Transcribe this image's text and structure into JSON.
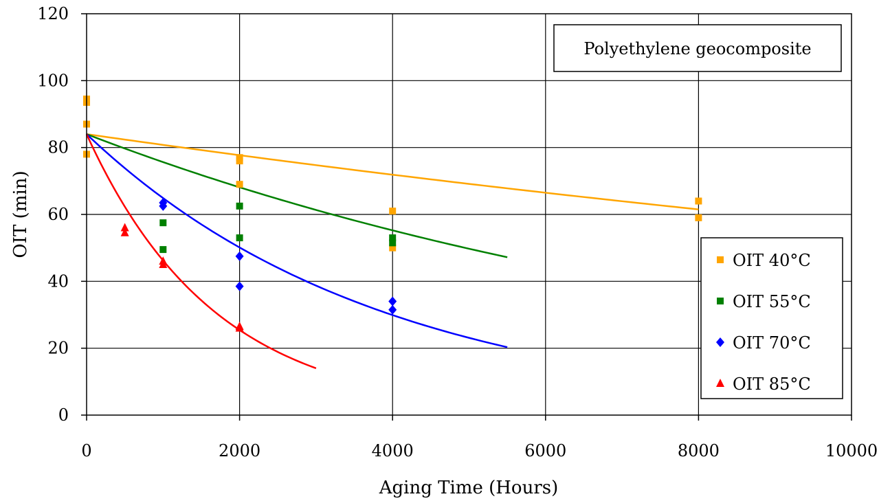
{
  "chart_data": {
    "type": "scatter",
    "title": "",
    "xlabel": "Aging Time (Hours)",
    "ylabel": "OIT (min)",
    "xlim": [
      0,
      10000
    ],
    "ylim": [
      0,
      120
    ],
    "xticks": [
      0,
      2000,
      4000,
      6000,
      8000,
      10000
    ],
    "yticks": [
      0,
      20,
      40,
      60,
      80,
      100,
      120
    ],
    "grid": true,
    "legend_position": "right",
    "annotation": "Polyethylene geocomposite",
    "series": [
      {
        "name": "OIT 40°C",
        "color": "#FFA500",
        "marker": "square",
        "points": [
          [
            0,
            94.5
          ],
          [
            0,
            93.5
          ],
          [
            0,
            87
          ],
          [
            0,
            78
          ],
          [
            2000,
            77
          ],
          [
            2000,
            76
          ],
          [
            2000,
            69
          ],
          [
            4000,
            61
          ],
          [
            4000,
            50
          ],
          [
            8000,
            64
          ],
          [
            8000,
            59
          ]
        ],
        "fit": {
          "start": 84,
          "end": 61.5,
          "xmax": 8000
        }
      },
      {
        "name": "OIT 55°C",
        "color": "#008000",
        "marker": "square",
        "points": [
          [
            1000,
            57.5
          ],
          [
            1000,
            49.5
          ],
          [
            2000,
            62.5
          ],
          [
            2000,
            53
          ],
          [
            4000,
            53
          ],
          [
            4000,
            51.5
          ]
        ],
        "fit": {
          "start": 84,
          "end": 47.2,
          "xmax": 5500
        }
      },
      {
        "name": "OIT 70°C",
        "color": "#0000FF",
        "marker": "diamond",
        "points": [
          [
            1000,
            63.5
          ],
          [
            1000,
            62.5
          ],
          [
            2000,
            47.5
          ],
          [
            2000,
            38.5
          ],
          [
            4000,
            34
          ],
          [
            4000,
            31.5
          ]
        ],
        "fit": {
          "start": 84,
          "end": 20.3,
          "xmax": 5500
        }
      },
      {
        "name": "OIT 85°C",
        "color": "#FF0000",
        "marker": "triangle",
        "points": [
          [
            500,
            56
          ],
          [
            500,
            54.5
          ],
          [
            1000,
            46
          ],
          [
            1000,
            45
          ],
          [
            2000,
            26.5
          ],
          [
            2000,
            26
          ]
        ],
        "fit": {
          "start": 84,
          "end": 14,
          "xmax": 3000
        }
      }
    ]
  }
}
